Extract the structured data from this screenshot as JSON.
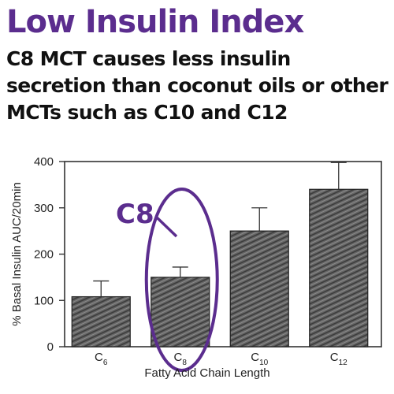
{
  "header": {
    "title": "Low Insulin Index",
    "subtitle": "C8 MCT causes less insulin secretion than coconut oils or other MCTs such as C10 and C12"
  },
  "colors": {
    "accent": "#5b2d8e",
    "bar_fill": "#5e5e5e",
    "text": "#111111"
  },
  "annotation": {
    "label": "C8",
    "target_category": "C8"
  },
  "chart_data": {
    "type": "bar",
    "categories": [
      "C6",
      "C8",
      "C10",
      "C12"
    ],
    "category_labels": [
      {
        "base": "C",
        "sub": "6"
      },
      {
        "base": "C",
        "sub": "8"
      },
      {
        "base": "C",
        "sub": "10"
      },
      {
        "base": "C",
        "sub": "12"
      }
    ],
    "values": [
      108,
      150,
      250,
      340
    ],
    "error_upper": [
      142,
      172,
      300,
      398
    ],
    "xlabel": "Fatty Acid Chain Length",
    "ylabel": "% Basal Insulin AUC/20min",
    "ylim": [
      0,
      400
    ],
    "yticks": [
      0,
      100,
      200,
      300,
      400
    ],
    "grid": false,
    "legend": "none"
  }
}
